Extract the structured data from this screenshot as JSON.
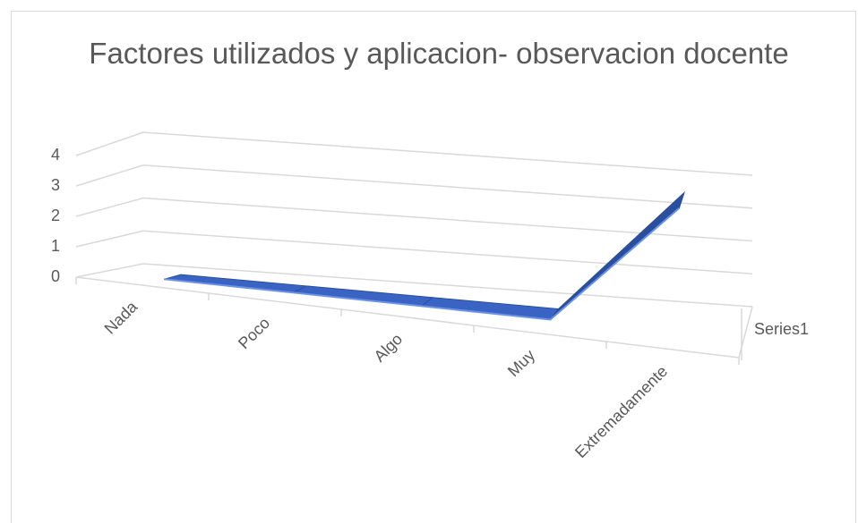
{
  "chart_data": {
    "type": "line3d",
    "title": "Factores utilizados y aplicacion- observacion docente",
    "categories": [
      "Nada",
      "Poco",
      "Algo",
      "Muy",
      "Extremadamente"
    ],
    "series": [
      {
        "name": "Series1",
        "color": "#3a64c4",
        "values": [
          0,
          0,
          0,
          0,
          4
        ]
      }
    ],
    "ylim": [
      0,
      4
    ],
    "yticks": [
      0,
      1,
      2,
      3,
      4
    ],
    "grid": true,
    "legend": "right"
  }
}
